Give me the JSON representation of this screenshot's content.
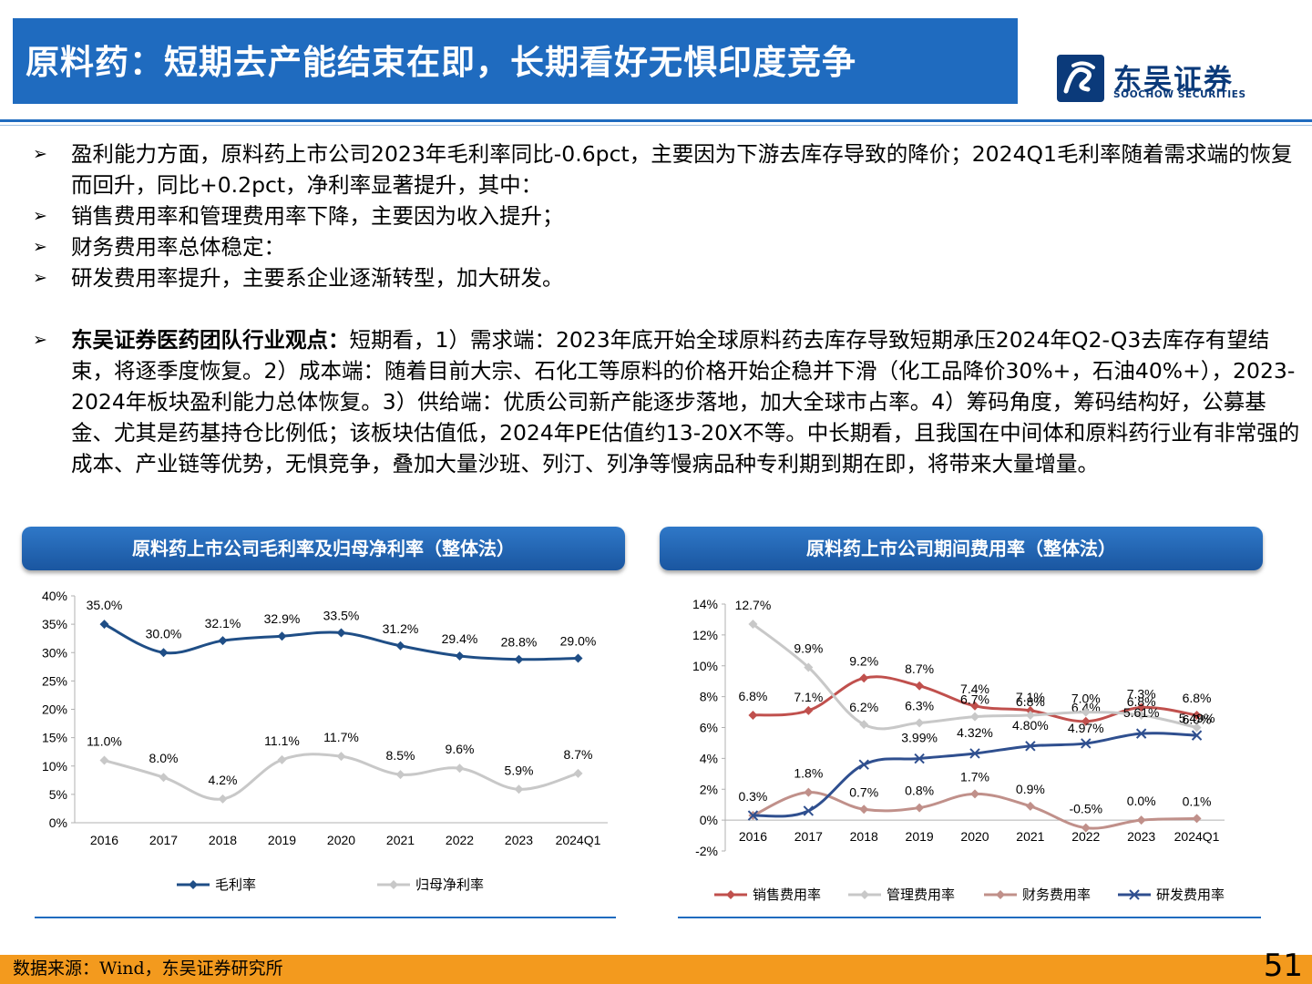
{
  "header": {
    "title": "原料药：短期去产能结束在即，长期看好无惧印度竞争",
    "logo_cn": "东吴证券",
    "logo_en": "SOOCHOW SECURITIES"
  },
  "bullets": {
    "arrow": "➢",
    "item1": "盈利能力方面，原料药上市公司2023年毛利率同比-0.6pct，主要因为下游去库存导致的降价；2024Q1毛利率随着需求端的恢复而回升，同比+0.2pct，净利率显著提升，其中：",
    "item2": "销售费用率和管理费用率下降，主要因为收入提升；",
    "item3": "财务费用率总体稳定：",
    "item4": "研发费用率提升，主要系企业逐渐转型，加大研发。",
    "item5_bold": "东吴证券医药团队行业观点：",
    "item5_text": "短期看，1）需求端：2023年底开始全球原料药去库存导致短期承压2024年Q2-Q3去库存有望结束，将逐季度恢复。2）成本端：随着目前大宗、石化工等原料的价格开始企稳并下滑（化工品降价30%+，石油40%+），2023-2024年板块盈利能力总体恢复。3）供给端：优质公司新产能逐步落地，加大全球市占率。4）筹码角度，筹码结构好，公募基金、尤其是药基持仓比例低；该板块估值低，2024年PE估值约13-20X不等。中长期看，且我国在中间体和原料药行业有非常强的成本、产业链等优势，无惧竞争，叠加大量沙班、列汀、列净等慢病品种专利期到期在即，将带来大量增量。"
  },
  "chart_headers": {
    "left": "原料药上市公司毛利率及归母净利率（整体法）",
    "right": "原料药上市公司期间费用率（整体法）"
  },
  "chart_data": [
    {
      "type": "line",
      "categories": [
        "2016",
        "2017",
        "2018",
        "2019",
        "2020",
        "2021",
        "2022",
        "2023",
        "2024Q1"
      ],
      "ylim": [
        0,
        40
      ],
      "yticks": [
        "0%",
        "5%",
        "10%",
        "15%",
        "20%",
        "25%",
        "30%",
        "35%",
        "40%"
      ],
      "legend_position": "bottom",
      "series": [
        {
          "name": "毛利率",
          "color": "#1f4e86",
          "marker": "diamond",
          "values": [
            35.0,
            30.0,
            32.1,
            32.9,
            33.5,
            31.2,
            29.4,
            28.8,
            29.0
          ],
          "labels": [
            "35.0%",
            "30.0%",
            "32.1%",
            "32.9%",
            "33.5%",
            "31.2%",
            "29.4%",
            "28.8%",
            "29.0%"
          ]
        },
        {
          "name": "归母净利率",
          "color": "#c8c8c8",
          "marker": "diamond",
          "values": [
            11.0,
            8.0,
            4.2,
            11.1,
            11.7,
            8.5,
            9.6,
            5.9,
            8.7
          ],
          "labels": [
            "11.0%",
            "8.0%",
            "4.2%",
            "11.1%",
            "11.7%",
            "8.5%",
            "9.6%",
            "5.9%",
            "8.7%"
          ]
        }
      ]
    },
    {
      "type": "line",
      "categories": [
        "2016",
        "2017",
        "2018",
        "2019",
        "2020",
        "2021",
        "2022",
        "2023",
        "2024Q1"
      ],
      "ylim": [
        -2,
        14
      ],
      "yticks": [
        "-2%",
        "0%",
        "2%",
        "4%",
        "6%",
        "8%",
        "10%",
        "12%",
        "14%"
      ],
      "legend_position": "bottom",
      "series": [
        {
          "name": "销售费用率",
          "color": "#c0504d",
          "marker": "diamond",
          "values": [
            6.8,
            7.1,
            9.2,
            8.7,
            7.4,
            7.1,
            6.4,
            7.3,
            6.8
          ],
          "labels": [
            "6.8%",
            "7.1%",
            "9.2%",
            "8.7%",
            "7.4%",
            "7.1%",
            "6.4%",
            "7.3%",
            "6.8%"
          ]
        },
        {
          "name": "管理费用率",
          "color": "#c8c8c8",
          "marker": "diamond",
          "values": [
            12.7,
            9.9,
            6.2,
            6.3,
            6.7,
            6.8,
            7.0,
            6.8,
            6.0
          ],
          "labels": [
            "12.7%",
            "9.9%",
            "6.2%",
            "6.3%",
            "6.7%",
            "6.8%",
            "7.0%",
            "6.8%",
            "6.0%"
          ]
        },
        {
          "name": "财务费用率",
          "color": "#c0908a",
          "marker": "diamond",
          "values": [
            0.3,
            1.8,
            0.7,
            0.8,
            1.7,
            0.9,
            -0.5,
            0.0,
            0.1
          ],
          "labels": [
            "0.3%",
            "1.8%",
            "0.7%",
            "0.8%",
            "1.7%",
            "0.9%",
            "-0.5%",
            "0.0%",
            "0.1%"
          ]
        },
        {
          "name": "研发费用率",
          "color": "#2f4f8f",
          "marker": "x",
          "values": [
            0.3,
            0.6,
            3.6,
            3.99,
            4.32,
            4.8,
            4.97,
            5.61,
            5.49
          ],
          "labels": [
            "",
            "",
            "",
            "3.99%",
            "4.32%",
            "4.80%",
            "4.97%",
            "5.61%",
            "5.49%"
          ]
        }
      ]
    }
  ],
  "footer": {
    "source": "数据来源：Wind，东吴证券研究所",
    "page": "51"
  }
}
